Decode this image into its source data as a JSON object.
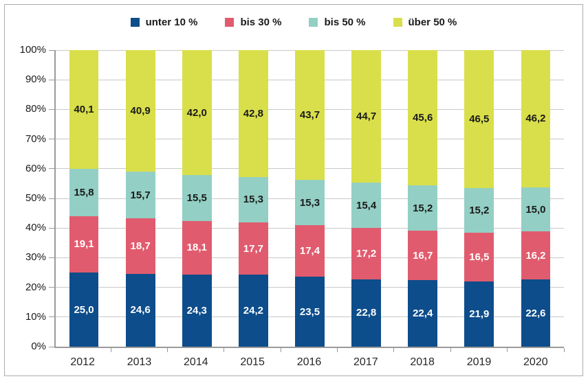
{
  "colors": {
    "frame_border": "#ababab",
    "axis": "#9a9a9a",
    "gridline": "#c8c8c8",
    "text": "#1a1a1a"
  },
  "legend": {
    "items": [
      {
        "label": "unter 10 %",
        "color": "#0d4d8b"
      },
      {
        "label": "bis 30 %",
        "color": "#e15b6e"
      },
      {
        "label": "bis 50 %",
        "color": "#93cfc4"
      },
      {
        "label": "über 50 %",
        "color": "#d9df4a"
      }
    ]
  },
  "chart_data": {
    "type": "bar",
    "stacked": true,
    "orientation": "vertical",
    "grid": true,
    "legend_position": "top",
    "categories": [
      "2012",
      "2013",
      "2014",
      "2015",
      "2016",
      "2017",
      "2018",
      "2019",
      "2020"
    ],
    "series": [
      {
        "name": "unter 10 %",
        "color": "#0d4d8b",
        "label_color": "#ffffff",
        "values": [
          25.0,
          24.6,
          24.3,
          24.2,
          23.5,
          22.8,
          22.4,
          21.9,
          22.6
        ],
        "labels": [
          "25,0",
          "24,6",
          "24,3",
          "24,2",
          "23,5",
          "22,8",
          "22,4",
          "21,9",
          "22,6"
        ]
      },
      {
        "name": "bis 30 %",
        "color": "#e15b6e",
        "label_color": "#ffffff",
        "values": [
          19.1,
          18.7,
          18.1,
          17.7,
          17.4,
          17.2,
          16.7,
          16.5,
          16.2
        ],
        "labels": [
          "19,1",
          "18,7",
          "18,1",
          "17,7",
          "17,4",
          "17,2",
          "16,7",
          "16,5",
          "16,2"
        ]
      },
      {
        "name": "bis 50 %",
        "color": "#93cfc4",
        "label_color": "#1a1a1a",
        "values": [
          15.8,
          15.7,
          15.5,
          15.3,
          15.3,
          15.4,
          15.2,
          15.2,
          15.0
        ],
        "labels": [
          "15,8",
          "15,7",
          "15,5",
          "15,3",
          "15,3",
          "15,4",
          "15,2",
          "15,2",
          "15,0"
        ]
      },
      {
        "name": "über 50 %",
        "color": "#d9df4a",
        "label_color": "#1a1a1a",
        "values": [
          40.1,
          40.9,
          42.0,
          42.8,
          43.7,
          44.7,
          45.6,
          46.5,
          46.2
        ],
        "labels": [
          "40,1",
          "40,9",
          "42,0",
          "42,8",
          "43,7",
          "44,7",
          "45,6",
          "46,5",
          "46,2"
        ]
      }
    ],
    "y_axis": {
      "min": 0,
      "max": 100,
      "tick_step": 10,
      "ticks": [
        "0%",
        "10%",
        "20%",
        "30%",
        "40%",
        "50%",
        "60%",
        "70%",
        "80%",
        "90%",
        "100%"
      ]
    }
  }
}
